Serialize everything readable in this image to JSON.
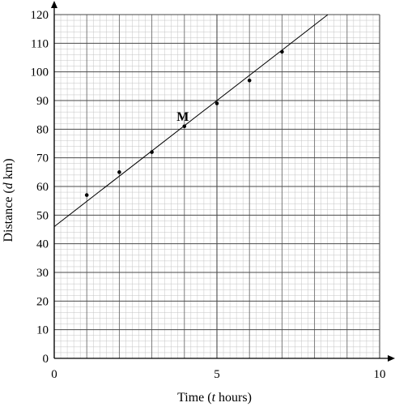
{
  "chart_data": {
    "type": "scatter",
    "x_axis": {
      "range": [
        0,
        10
      ],
      "ticks": [
        0,
        5,
        10
      ],
      "tick_labels": [
        "0",
        "5",
        "10"
      ],
      "minor_divisions_per_unit": 5
    },
    "y_axis": {
      "range": [
        0,
        120
      ],
      "ticks": [
        0,
        10,
        20,
        30,
        40,
        50,
        60,
        70,
        80,
        90,
        100,
        110,
        120
      ],
      "tick_labels": [
        "0",
        "10",
        "20",
        "30",
        "40",
        "50",
        "60",
        "70",
        "80",
        "90",
        "100",
        "110",
        "120"
      ],
      "minor_divisions_per_unit": 5
    },
    "xlabel": {
      "prefix": "Time (",
      "var": "t",
      "suffix": " hours)"
    },
    "ylabel": {
      "prefix": "Distance (",
      "var": "d",
      "suffix": " km)"
    },
    "grid": true,
    "points": [
      {
        "x": 1,
        "y": 57
      },
      {
        "x": 2,
        "y": 65
      },
      {
        "x": 3,
        "y": 72
      },
      {
        "x": 4,
        "y": 81
      },
      {
        "x": 5,
        "y": 89
      },
      {
        "x": 6,
        "y": 97
      },
      {
        "x": 7,
        "y": 107
      }
    ],
    "line_of_best_fit": {
      "intercept": 46,
      "slope": 8.8
    },
    "annotations": [
      {
        "text": "M",
        "x": 4,
        "y": 81
      }
    ]
  }
}
